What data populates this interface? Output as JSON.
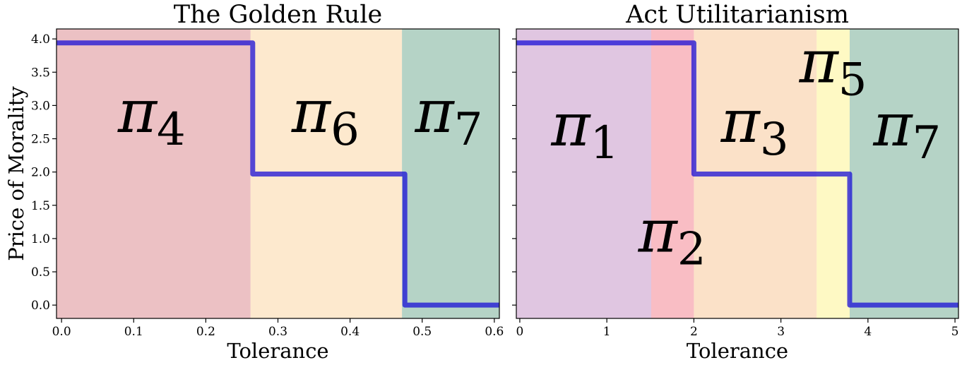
{
  "chart_data": [
    {
      "type": "step",
      "title": "The Golden Rule",
      "xlabel": "Tolerance",
      "ylabel": "Price of Morality",
      "xlim": [
        -0.007,
        0.607
      ],
      "ylim": [
        -0.2,
        4.15
      ],
      "xticks": [
        {
          "value": 0.0,
          "label": "0.0"
        },
        {
          "value": 0.1,
          "label": "0.1"
        },
        {
          "value": 0.2,
          "label": "0.2"
        },
        {
          "value": 0.3,
          "label": "0.3"
        },
        {
          "value": 0.4,
          "label": "0.4"
        },
        {
          "value": 0.5,
          "label": "0.5"
        },
        {
          "value": 0.6,
          "label": "0.6"
        }
      ],
      "yticks": [
        {
          "value": 0.0,
          "label": "0.0"
        },
        {
          "value": 0.5,
          "label": "0.5"
        },
        {
          "value": 1.0,
          "label": "1.0"
        },
        {
          "value": 1.5,
          "label": "1.5"
        },
        {
          "value": 2.0,
          "label": "2.0"
        },
        {
          "value": 2.5,
          "label": "2.5"
        },
        {
          "value": 3.0,
          "label": "3.0"
        },
        {
          "value": 3.5,
          "label": "3.5"
        },
        {
          "value": 4.0,
          "label": "4.0"
        }
      ],
      "regions": [
        {
          "x0": -0.007,
          "x1": 0.262,
          "color": "#d9838a",
          "main": "π",
          "sub": "4",
          "label_x": 0.125,
          "label_y": 2.6
        },
        {
          "x0": 0.262,
          "x1": 0.472,
          "color": "#fbd49e",
          "main": "π",
          "sub": "6",
          "label_x": 0.366,
          "label_y": 2.6
        },
        {
          "x0": 0.472,
          "x1": 0.607,
          "color": "#6ba88e",
          "main": "π",
          "sub": "7",
          "label_x": 0.537,
          "label_y": 2.6
        }
      ],
      "line_color": "#1a0fd6",
      "steps": [
        {
          "x": -0.007,
          "y": 3.94
        },
        {
          "x": 0.265,
          "y": 3.94
        },
        {
          "x": 0.265,
          "y": 1.97
        },
        {
          "x": 0.476,
          "y": 1.97
        },
        {
          "x": 0.476,
          "y": 0.0
        },
        {
          "x": 0.607,
          "y": 0.0
        }
      ]
    },
    {
      "type": "step",
      "title": "Act Utilitarianism",
      "xlabel": "Tolerance",
      "ylabel": "",
      "xlim": [
        -0.04,
        5.04
      ],
      "ylim": [
        -0.2,
        4.15
      ],
      "xticks": [
        {
          "value": 0,
          "label": "0"
        },
        {
          "value": 1,
          "label": "1"
        },
        {
          "value": 2,
          "label": "2"
        },
        {
          "value": 3,
          "label": "3"
        },
        {
          "value": 4,
          "label": "4"
        },
        {
          "value": 5,
          "label": "5"
        }
      ],
      "yticks": [
        {
          "value": 0.0,
          "label": ""
        },
        {
          "value": 0.5,
          "label": ""
        },
        {
          "value": 1.0,
          "label": ""
        },
        {
          "value": 1.5,
          "label": ""
        },
        {
          "value": 2.0,
          "label": ""
        },
        {
          "value": 2.5,
          "label": ""
        },
        {
          "value": 3.0,
          "label": ""
        },
        {
          "value": 3.5,
          "label": ""
        },
        {
          "value": 4.0,
          "label": ""
        }
      ],
      "regions": [
        {
          "x0": -0.04,
          "x1": 1.51,
          "color": "#c28ec4",
          "main": "π",
          "sub": "1",
          "label_x": 0.75,
          "label_y": 2.4
        },
        {
          "x0": 1.51,
          "x1": 2.0,
          "color": "#f37c89",
          "main": "π",
          "sub": "2",
          "label_x": 1.75,
          "label_y": 0.8
        },
        {
          "x0": 2.0,
          "x1": 3.41,
          "color": "#f8c391",
          "main": "π",
          "sub": "3",
          "label_x": 2.7,
          "label_y": 2.45
        },
        {
          "x0": 3.41,
          "x1": 3.79,
          "color": "#fdf48a",
          "main": "π",
          "sub": "5",
          "label_x": 3.6,
          "label_y": 3.35
        },
        {
          "x0": 3.79,
          "x1": 5.04,
          "color": "#6ba88e",
          "main": "π",
          "sub": "7",
          "label_x": 4.45,
          "label_y": 2.4
        }
      ],
      "line_color": "#1a0fd6",
      "steps": [
        {
          "x": -0.04,
          "y": 3.94
        },
        {
          "x": 2.0,
          "y": 3.94
        },
        {
          "x": 2.0,
          "y": 1.97
        },
        {
          "x": 3.79,
          "y": 1.97
        },
        {
          "x": 3.79,
          "y": 0.0
        },
        {
          "x": 5.04,
          "y": 0.0
        }
      ]
    }
  ]
}
